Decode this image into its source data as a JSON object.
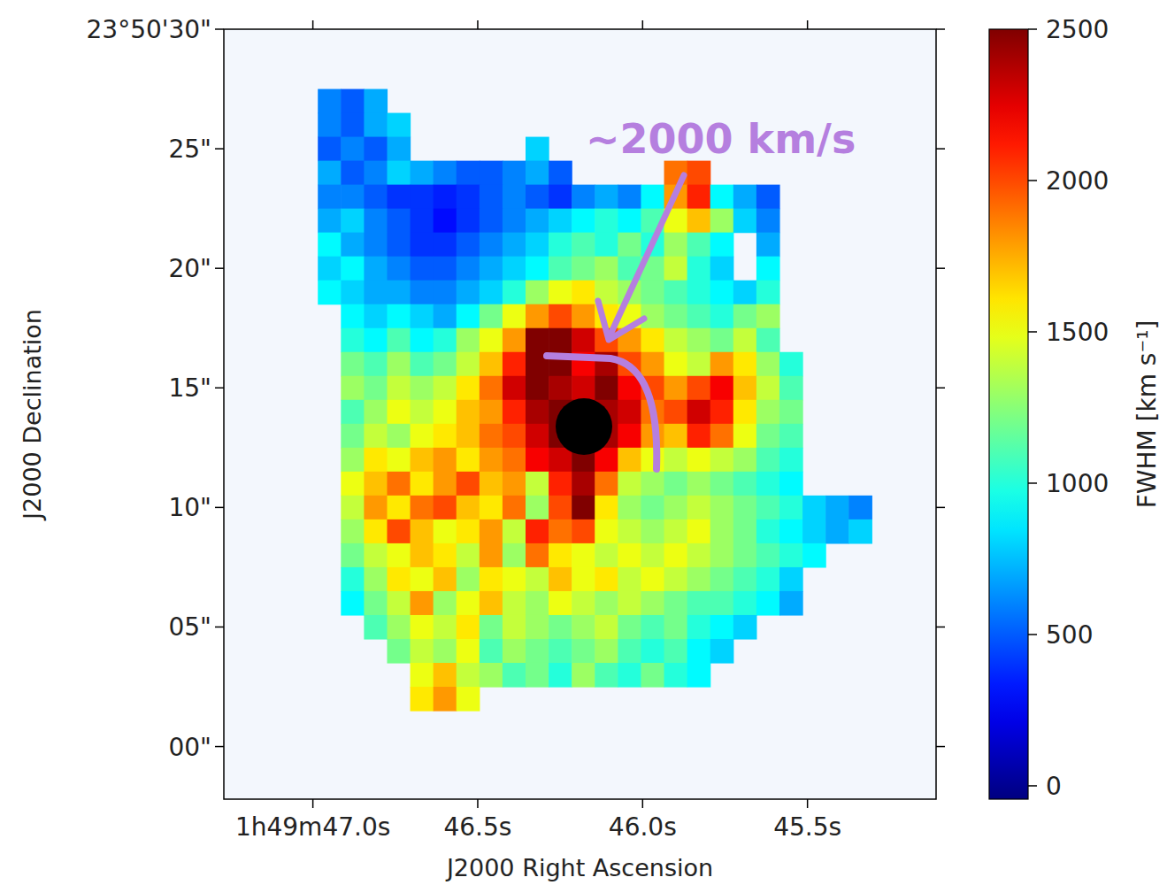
{
  "chart_data": {
    "type": "heatmap",
    "x_label": "J2000 Right Ascension",
    "y_label": "J2000 Declination",
    "xlim": [
      47.27,
      45.11
    ],
    "ylim": [
      -2.2,
      30
    ],
    "xticks": [
      {
        "value": 47.0,
        "label": "1h49m47.0s"
      },
      {
        "value": 46.5,
        "label": "46.5s"
      },
      {
        "value": 46.0,
        "label": "46.0s"
      },
      {
        "value": 45.5,
        "label": "45.5s"
      }
    ],
    "yticks": [
      {
        "value": 0,
        "label": "00\""
      },
      {
        "value": 5,
        "label": "05\""
      },
      {
        "value": 10,
        "label": "10\""
      },
      {
        "value": 15,
        "label": "15\""
      },
      {
        "value": 20,
        "label": "20\""
      },
      {
        "value": 25,
        "label": "25\""
      },
      {
        "value": 30,
        "label": "23°50'30\""
      }
    ],
    "x": [
      46.95,
      46.88,
      46.81,
      46.74,
      46.67,
      46.6,
      46.53,
      46.46,
      46.39,
      46.32,
      46.25,
      46.18,
      46.11,
      46.04,
      45.97,
      45.9,
      45.83,
      45.76,
      45.69,
      45.62,
      45.55,
      45.48,
      45.41,
      45.34
    ],
    "y": [
      27,
      26,
      25,
      24,
      23,
      22,
      21,
      20,
      19,
      18,
      17,
      16,
      15,
      14,
      13,
      12,
      11,
      10,
      9,
      8,
      7,
      6,
      5,
      4,
      3,
      2
    ],
    "values": [
      [
        600,
        500,
        700,
        null,
        null,
        null,
        null,
        null,
        null,
        null,
        null,
        null,
        null,
        null,
        null,
        null,
        null,
        null,
        null,
        null,
        null,
        null,
        null,
        null
      ],
      [
        600,
        500,
        700,
        800,
        null,
        null,
        null,
        null,
        null,
        null,
        null,
        null,
        null,
        null,
        null,
        null,
        null,
        null,
        null,
        null,
        null,
        null,
        null,
        null
      ],
      [
        500,
        600,
        500,
        700,
        null,
        null,
        null,
        null,
        null,
        800,
        null,
        null,
        null,
        null,
        null,
        null,
        null,
        null,
        null,
        null,
        null,
        null,
        null,
        null
      ],
      [
        700,
        500,
        600,
        800,
        700,
        600,
        500,
        500,
        600,
        700,
        500,
        null,
        null,
        null,
        null,
        1900,
        2000,
        null,
        null,
        null,
        null,
        null,
        null,
        null
      ],
      [
        600,
        600,
        500,
        400,
        400,
        350,
        400,
        500,
        600,
        500,
        400,
        600,
        700,
        600,
        900,
        1800,
        2100,
        900,
        700,
        500,
        null,
        null,
        null,
        null
      ],
      [
        700,
        800,
        600,
        500,
        400,
        300,
        400,
        500,
        600,
        700,
        800,
        900,
        1000,
        900,
        1100,
        1500,
        1700,
        1300,
        800,
        600,
        null,
        null,
        null,
        null
      ],
      [
        900,
        700,
        600,
        500,
        400,
        400,
        500,
        600,
        700,
        800,
        1000,
        1100,
        1000,
        1200,
        1000,
        1300,
        1100,
        900,
        null,
        700,
        null,
        null,
        null,
        null
      ],
      [
        800,
        900,
        700,
        600,
        500,
        500,
        600,
        700,
        800,
        900,
        1100,
        1200,
        1300,
        1100,
        1200,
        1400,
        1000,
        800,
        null,
        900,
        null,
        null,
        null,
        null
      ],
      [
        900,
        800,
        700,
        700,
        600,
        600,
        700,
        800,
        1000,
        1300,
        1500,
        1600,
        1400,
        1300,
        1200,
        1100,
        1000,
        900,
        800,
        1000,
        null,
        null,
        null,
        null
      ],
      [
        null,
        900,
        800,
        900,
        800,
        700,
        900,
        1200,
        1500,
        1800,
        2000,
        1800,
        1600,
        1500,
        1300,
        1200,
        1100,
        1000,
        1200,
        1300,
        null,
        null,
        null,
        null
      ],
      [
        null,
        1000,
        900,
        1100,
        900,
        1000,
        1300,
        1500,
        1800,
        2500,
        2500,
        2300,
        2000,
        1800,
        1600,
        1400,
        1300,
        1200,
        1400,
        1100,
        null,
        null,
        null,
        null
      ],
      [
        null,
        1200,
        1100,
        1300,
        1100,
        1200,
        1400,
        1700,
        2100,
        2500,
        2500,
        2200,
        2400,
        2000,
        1800,
        1500,
        1400,
        1800,
        1600,
        1300,
        1000,
        null,
        null,
        null
      ],
      [
        null,
        1300,
        1200,
        1400,
        1300,
        1400,
        1600,
        1900,
        2300,
        2500,
        2400,
        2300,
        2500,
        2200,
        2000,
        1800,
        2000,
        2200,
        1700,
        1400,
        1100,
        null,
        null,
        null
      ],
      [
        null,
        1100,
        1300,
        1500,
        1400,
        1500,
        1700,
        1800,
        2100,
        2400,
        2500,
        2500,
        2400,
        2300,
        1900,
        2000,
        2300,
        2100,
        1600,
        1300,
        1200,
        null,
        null,
        null
      ],
      [
        null,
        1200,
        1400,
        1300,
        1500,
        1600,
        1700,
        1900,
        2000,
        2300,
        2500,
        2500,
        2400,
        2200,
        1800,
        1700,
        2100,
        1900,
        1500,
        1200,
        1100,
        null,
        null,
        null
      ],
      [
        null,
        1300,
        1600,
        1500,
        1700,
        1800,
        1600,
        1800,
        1900,
        2200,
        2300,
        2500,
        2200,
        1700,
        1500,
        1400,
        1500,
        1400,
        1300,
        1100,
        1000,
        null,
        null,
        null
      ],
      [
        null,
        1500,
        1700,
        1900,
        1600,
        1800,
        2000,
        1700,
        1800,
        1400,
        2100,
        2400,
        1900,
        1400,
        1300,
        1200,
        1300,
        1200,
        1100,
        1000,
        900,
        null,
        null,
        null
      ],
      [
        null,
        1400,
        1800,
        1600,
        1900,
        2000,
        1700,
        1600,
        1900,
        1300,
        2000,
        2500,
        1600,
        1300,
        1200,
        1300,
        1400,
        1300,
        1200,
        1100,
        1000,
        800,
        700,
        600
      ],
      [
        null,
        1300,
        1600,
        2000,
        1700,
        1500,
        1600,
        1800,
        1400,
        2100,
        1900,
        2000,
        1500,
        1400,
        1300,
        1400,
        1500,
        1300,
        1200,
        1000,
        900,
        800,
        700,
        800
      ],
      [
        null,
        1200,
        1400,
        1500,
        1700,
        1600,
        1400,
        1800,
        1300,
        1900,
        1600,
        1500,
        1400,
        1500,
        1400,
        1500,
        1400,
        1300,
        1200,
        1100,
        1000,
        900,
        null,
        null
      ],
      [
        null,
        1000,
        1300,
        1600,
        1500,
        1700,
        1300,
        1600,
        1500,
        1400,
        1700,
        1500,
        1600,
        1400,
        1500,
        1400,
        1300,
        1200,
        1100,
        1000,
        800,
        null,
        null,
        null
      ],
      [
        null,
        900,
        1200,
        1400,
        1800,
        1300,
        1500,
        1700,
        1400,
        1300,
        1500,
        1400,
        1300,
        1400,
        1300,
        1200,
        1100,
        1100,
        1000,
        900,
        700,
        null,
        null,
        null
      ],
      [
        null,
        null,
        1100,
        1300,
        1500,
        1400,
        1600,
        1200,
        1400,
        1300,
        1200,
        1300,
        1400,
        1200,
        1100,
        1200,
        1000,
        900,
        800,
        null,
        null,
        null,
        null,
        null
      ],
      [
        null,
        null,
        null,
        1200,
        1400,
        1300,
        1500,
        1100,
        1300,
        1200,
        1100,
        1200,
        1300,
        1100,
        1000,
        1100,
        900,
        800,
        null,
        null,
        null,
        null,
        null,
        null
      ],
      [
        null,
        null,
        null,
        null,
        1500,
        1700,
        1400,
        1300,
        1100,
        1200,
        1000,
        1300,
        1100,
        1000,
        1200,
        1000,
        900,
        null,
        null,
        null,
        null,
        null,
        null,
        null
      ],
      [
        null,
        null,
        null,
        null,
        1600,
        1800,
        1500,
        null,
        null,
        null,
        null,
        null,
        null,
        null,
        null,
        null,
        null,
        null,
        null,
        null,
        null,
        null,
        null,
        null
      ]
    ],
    "colorbar": {
      "label": "FWHM [km s⁻¹]",
      "range": [
        -44,
        2500
      ],
      "ticks": [
        0,
        500,
        1000,
        1500,
        2000,
        2500
      ]
    },
    "annotation": "~2000 km/s"
  }
}
